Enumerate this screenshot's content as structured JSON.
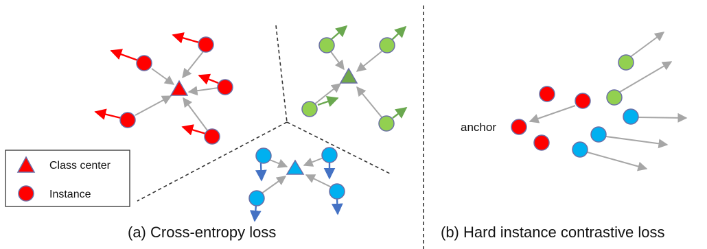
{
  "colors": {
    "red": "#ff0000",
    "red_stroke": "#6b6fa6",
    "green": "#92d050",
    "green_dark": "#70a84a",
    "blue": "#00b0f0",
    "blue_arrow": "#4472c4",
    "gray": "#a6a6a6",
    "green_arrow": "#6aa84f",
    "red_arrow": "#ff0000"
  },
  "legend": {
    "class_center": "Class center",
    "instance": "Instance"
  },
  "panel_a": {
    "caption": "(a) Cross-entropy loss"
  },
  "panel_b": {
    "caption": "(b) Hard instance contrastive loss",
    "anchor_label": "anchor"
  }
}
